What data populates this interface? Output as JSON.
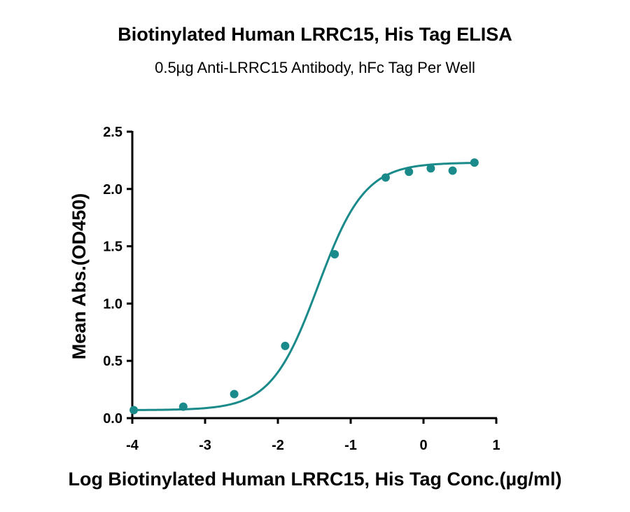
{
  "chart_data": {
    "type": "scatter",
    "title": "Biotinylated Human LRRC15, His Tag ELISA",
    "subtitle": "0.5µg Anti-LRRC15 Antibody, hFc Tag Per Well",
    "xlabel": "Log Biotinylated Human LRRC15, His Tag Conc.(µg/ml)",
    "ylabel": "Mean Abs.(OD450)",
    "xlim": [
      -4,
      1
    ],
    "ylim": [
      0,
      2.5
    ],
    "xticks": [
      -4,
      -3,
      -2,
      -1,
      0,
      1
    ],
    "xtick_labels": [
      "-4",
      "-3",
      "-2",
      "-1",
      "0",
      "1"
    ],
    "yticks": [
      0.0,
      0.5,
      1.0,
      1.5,
      2.0,
      2.5
    ],
    "ytick_labels": [
      "0.0",
      "0.5",
      "1.0",
      "1.5",
      "2.0",
      "2.5"
    ],
    "grid": false,
    "color": "#1a8a8a",
    "series": [
      {
        "points": [
          {
            "x": -3.98,
            "y": 0.07
          },
          {
            "x": -3.3,
            "y": 0.1
          },
          {
            "x": -2.6,
            "y": 0.21
          },
          {
            "x": -1.9,
            "y": 0.63
          },
          {
            "x": -1.22,
            "y": 1.43
          },
          {
            "x": -0.52,
            "y": 2.1
          },
          {
            "x": -0.2,
            "y": 2.15
          },
          {
            "x": 0.1,
            "y": 2.18
          },
          {
            "x": 0.4,
            "y": 2.16
          },
          {
            "x": 0.7,
            "y": 2.23
          }
        ],
        "fit": {
          "type": "4PL",
          "bottom": 0.07,
          "top": 2.23,
          "logEC50": -1.45,
          "hill": 1.35
        }
      }
    ]
  }
}
